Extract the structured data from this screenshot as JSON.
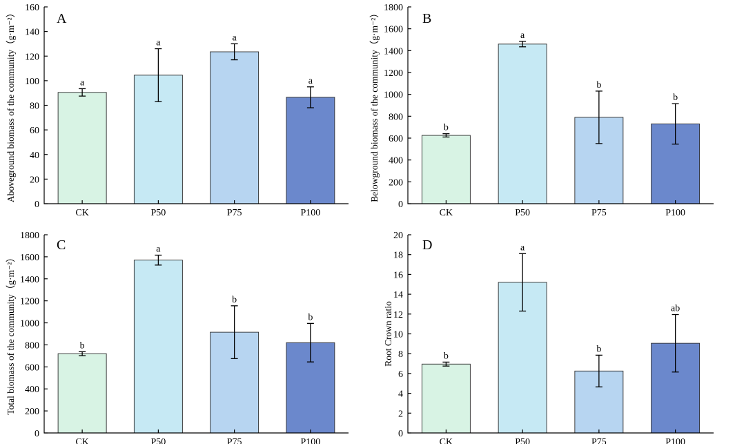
{
  "colors": {
    "CK": "#d8f3e4",
    "P50": "#c6e9f4",
    "P75": "#b7d5f1",
    "P100": "#6b88cc",
    "axis": "#000000"
  },
  "chart_data": [
    {
      "panel": "A",
      "type": "bar",
      "ylabel": "Aboveground biomass of the community（g·m⁻²）",
      "ylim": [
        0,
        160
      ],
      "ytick_step": 20,
      "yticks": [
        "0",
        "20",
        "40",
        "60",
        "80",
        "100",
        "120",
        "140",
        "160"
      ],
      "categories": [
        "CK",
        "P50",
        "P75",
        "P100"
      ],
      "values": [
        90.5,
        104.5,
        123.5,
        86.5
      ],
      "errors": [
        3.0,
        21.5,
        6.5,
        8.5
      ],
      "letters": [
        "a",
        "a",
        "a",
        "a"
      ]
    },
    {
      "panel": "B",
      "type": "bar",
      "ylabel": "Belowground biomass of the community（g·m⁻²）",
      "ylim": [
        0,
        1800
      ],
      "ytick_step": 200,
      "yticks": [
        "0",
        "200",
        "400",
        "600",
        "800",
        "1000",
        "1200",
        "1400",
        "1600",
        "1800"
      ],
      "categories": [
        "CK",
        "P50",
        "P75",
        "P100"
      ],
      "values": [
        625,
        1460,
        790,
        730
      ],
      "errors": [
        15,
        25,
        240,
        185
      ],
      "letters": [
        "b",
        "a",
        "b",
        "b"
      ]
    },
    {
      "panel": "C",
      "type": "bar",
      "ylabel": "Total biomass of the community（g·m⁻²）",
      "ylim": [
        0,
        1800
      ],
      "ytick_step": 200,
      "yticks": [
        "0",
        "200",
        "400",
        "600",
        "800",
        "1000",
        "1200",
        "1400",
        "1600",
        "1800"
      ],
      "categories": [
        "CK",
        "P50",
        "P75",
        "P100"
      ],
      "values": [
        720,
        1570,
        915,
        820
      ],
      "errors": [
        18,
        45,
        240,
        175
      ],
      "letters": [
        "b",
        "a",
        "b",
        "b"
      ]
    },
    {
      "panel": "D",
      "type": "bar",
      "ylabel": "Root Crown ratio",
      "ylim": [
        0,
        20
      ],
      "ytick_step": 2,
      "yticks": [
        "0",
        "2",
        "4",
        "6",
        "8",
        "10",
        "12",
        "14",
        "16",
        "18",
        "20"
      ],
      "categories": [
        "CK",
        "P50",
        "P75",
        "P100"
      ],
      "values": [
        6.95,
        15.2,
        6.25,
        9.05
      ],
      "errors": [
        0.2,
        2.9,
        1.6,
        2.9
      ],
      "letters": [
        "b",
        "a",
        "b",
        "ab"
      ]
    }
  ]
}
